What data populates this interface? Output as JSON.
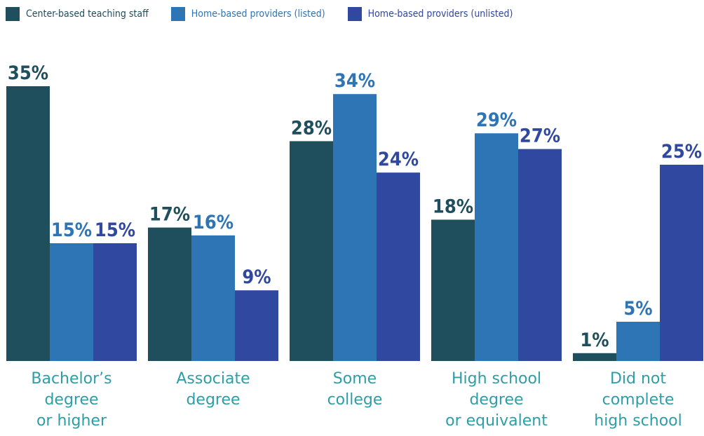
{
  "chart_data": {
    "type": "bar",
    "title": "",
    "xlabel": "",
    "ylabel": "",
    "ylim": [
      0,
      35
    ],
    "grid": false,
    "legend_position": "top-left",
    "categories": [
      [
        "Bachelor’s",
        "degree",
        "or higher"
      ],
      [
        "Associate",
        "degree"
      ],
      [
        "Some",
        "college"
      ],
      [
        "High school",
        "degree",
        "or equivalent"
      ],
      [
        "Did not",
        "complete",
        "high school"
      ]
    ],
    "series": [
      {
        "name": "Center-based teaching staff",
        "color": "#1f4e5c",
        "values": [
          35,
          17,
          28,
          18,
          1
        ],
        "labels": [
          "35%",
          "17%",
          "28%",
          "18%",
          "1%"
        ]
      },
      {
        "name": "Home-based providers (listed)",
        "color": "#2e75b6",
        "values": [
          15,
          16,
          34,
          29,
          5
        ],
        "labels": [
          "15%",
          "16%",
          "34%",
          "29%",
          "5%"
        ]
      },
      {
        "name": "Home-based providers (unlisted)",
        "color": "#3048a0",
        "values": [
          15,
          9,
          24,
          27,
          25
        ],
        "labels": [
          "15%",
          "9%",
          "24%",
          "27%",
          "25%"
        ]
      }
    ]
  }
}
